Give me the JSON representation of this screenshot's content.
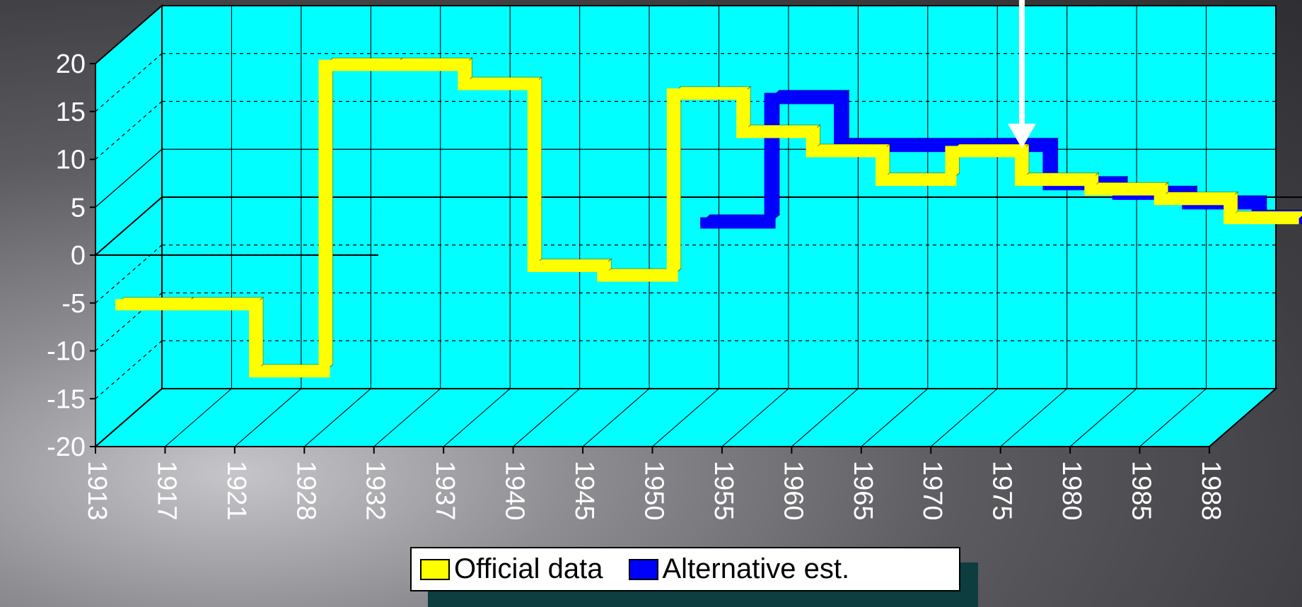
{
  "chart_data": {
    "type": "line",
    "style": "3d-stepped-ribbon",
    "title": "",
    "xlabel": "",
    "ylabel": "",
    "x": [
      "1913",
      "1917",
      "1921",
      "1928",
      "1932",
      "1937",
      "1940",
      "1945",
      "1950",
      "1955",
      "1960",
      "1965",
      "1970",
      "1975",
      "1980",
      "1985",
      "1988"
    ],
    "ylim": [
      -20,
      20
    ],
    "yticks": [
      20,
      15,
      10,
      5,
      0,
      -5,
      -10,
      -15,
      -20
    ],
    "grid": true,
    "legend_position": "bottom",
    "series": [
      {
        "name": "Official data",
        "color": "#ffff00",
        "values": [
          -7,
          -7,
          -14,
          18,
          18,
          16,
          -3,
          -4,
          15,
          11,
          9,
          6,
          9,
          6,
          5,
          4,
          2
        ]
      },
      {
        "name": "Alternative est.",
        "color": "#0000ff",
        "values": [
          null,
          null,
          null,
          null,
          null,
          null,
          null,
          null,
          -1,
          12,
          7,
          7,
          7,
          3,
          2,
          1,
          -0.5
        ]
      }
    ],
    "annotations": [
      {
        "type": "arrow",
        "color": "#ffffff",
        "x": "1975",
        "direction": "down"
      }
    ]
  },
  "colors": {
    "plot_background": "#00ffff",
    "grid": "#000000",
    "tick_text": "#ffffff"
  }
}
